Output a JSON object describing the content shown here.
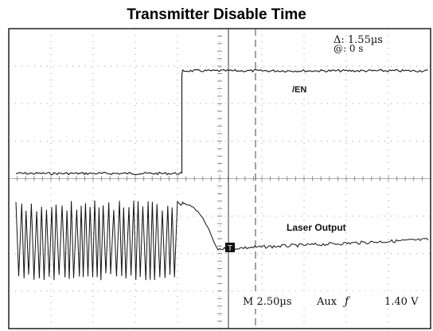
{
  "chart_data": {
    "type": "line",
    "title": "Transmitter Disable Time",
    "x_unit": "µs",
    "x_range": [
      -7.1,
      10.2
    ],
    "edge_time": 0,
    "cursor_time": 1.55,
    "series": [
      {
        "name": "/EN",
        "description_points": [
          {
            "x": -7.1,
            "y": "low"
          },
          {
            "x": -0.05,
            "y": "low"
          },
          {
            "x": 0.0,
            "y": "high"
          },
          {
            "x": 10.2,
            "y": "high"
          }
        ]
      },
      {
        "name": "Laser Output",
        "description_points": [
          {
            "x": -7.1,
            "y": "modulated"
          },
          {
            "x": 0.0,
            "y": "modulated-high"
          },
          {
            "x": 0.9,
            "y": "decaying"
          },
          {
            "x": 1.55,
            "y": "off"
          },
          {
            "x": 10.2,
            "y": "off"
          }
        ]
      }
    ],
    "readouts": {
      "delta": "Δ: 1.55µs",
      "at": "@: 0 s",
      "timebase": "M 2.50µs",
      "trigger_source": "Aux",
      "trigger_slope": "ƒ",
      "trigger_level": "1.40 V"
    },
    "trace_labels": {
      "enable": "/EN",
      "laser": "Laser Output"
    },
    "ground_marker": "T",
    "grid": true
  }
}
